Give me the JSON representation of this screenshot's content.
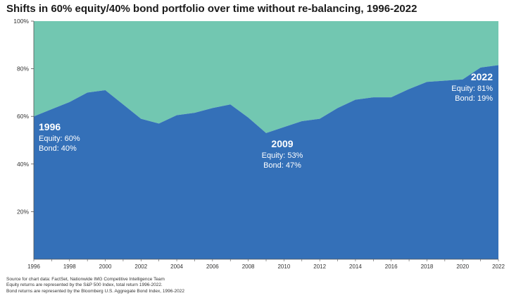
{
  "chart_data": {
    "type": "area",
    "title": "Shifts in 60% equity/40% bond portfolio over time without re-balancing, 1996-2022",
    "xlabel": "",
    "ylabel": "",
    "x": [
      1996,
      1997,
      1998,
      1999,
      2000,
      2001,
      2002,
      2003,
      2004,
      2005,
      2006,
      2007,
      2008,
      2009,
      2010,
      2011,
      2012,
      2013,
      2014,
      2015,
      2016,
      2017,
      2018,
      2019,
      2020,
      2021,
      2022
    ],
    "series": [
      {
        "name": "Equity",
        "color": "#3470b8",
        "values": [
          60,
          63,
          66,
          70,
          71,
          65,
          59,
          57,
          60.5,
          61.5,
          63.5,
          65,
          59.5,
          53,
          55.5,
          58,
          59,
          63.5,
          67,
          68,
          68,
          71.5,
          74.5,
          75,
          75.5,
          80.5,
          81.5
        ]
      },
      {
        "name": "Bond",
        "color": "#72c7b1",
        "values": [
          40,
          37,
          34,
          30,
          29,
          35,
          41,
          43,
          39.5,
          38.5,
          36.5,
          35,
          40.5,
          47,
          44.5,
          42,
          41,
          36.5,
          33,
          32,
          32,
          28.5,
          25.5,
          25,
          24.5,
          19.5,
          18.5
        ]
      }
    ],
    "stacked": true,
    "ylim": [
      0,
      100
    ],
    "xlim": [
      1996,
      2022
    ],
    "y_ticks": [
      "100%",
      "80%",
      "60%",
      "40%",
      "20%"
    ],
    "x_ticks": [
      "1996",
      "1998",
      "2000",
      "2002",
      "2004",
      "2006",
      "2008",
      "2010",
      "2012",
      "2014",
      "2016",
      "2018",
      "2020",
      "2022"
    ],
    "grid": false,
    "legend": "none",
    "annotations": [
      {
        "x": 1996,
        "y": 60,
        "anchor": "left",
        "year": "1996",
        "line1": "Equity: 60%",
        "line2": "Bond: 40%"
      },
      {
        "x": 2009,
        "y": 53,
        "anchor": "middle",
        "year": "2009",
        "line1": "Equity: 53%",
        "line2": "Bond: 47%"
      },
      {
        "x": 2022,
        "y": 81,
        "anchor": "right",
        "year": "2022",
        "line1": "Equity: 81%",
        "line2": "Bond: 19%"
      }
    ]
  },
  "footnotes": [
    "Source for chart data: FactSet, Nationwide IMG Competitive Intelligence Team",
    "Equity returns are represented by the S&P 500 Index, total return 1996-2022.",
    "Bond returns are represented by the Bloomberg U.S. Aggregate Bond Index, 1996-2022"
  ]
}
